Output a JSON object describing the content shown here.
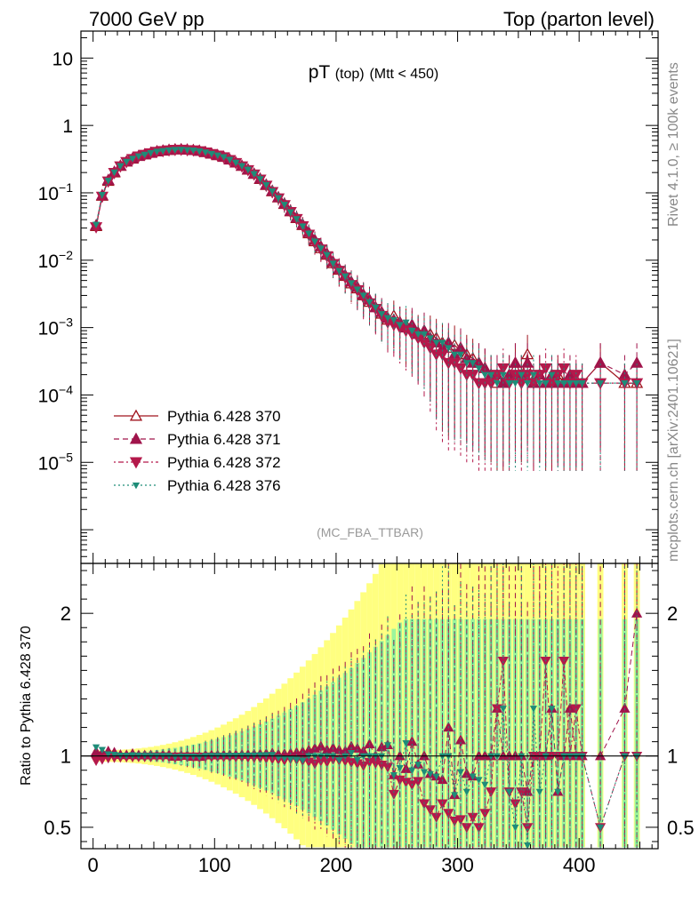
{
  "header": {
    "left": "7000 GeV pp",
    "right": "Top (parton level)",
    "side_rivet": "Rivet 4.1.0, ≥ 100k events",
    "side_mcplots": "mcplots.cern.ch [arXiv:2401.10621]"
  },
  "chart_data": {
    "type": "line",
    "title_main": "pT",
    "title_sub1": "(top)",
    "title_sub2": "(Mtt < 450)",
    "analysis_tag": "(MC_FBA_TTBAR)",
    "xlabel": "",
    "ylabel_ratio": "Ratio to Pythia 6.428 370",
    "xlim": [
      -10,
      465
    ],
    "ylim_main_log10": [
      -6.5,
      1.4
    ],
    "ylim_ratio": [
      0.35,
      2.35
    ],
    "x_ticks": [
      "0",
      "100",
      "200",
      "300",
      "400"
    ],
    "x_tick_values": [
      0,
      100,
      200,
      300,
      400
    ],
    "y_ticks_main": [
      {
        "base": "10",
        "exp": "",
        "v": 1
      },
      {
        "base": "1",
        "exp": "",
        "v": 0
      },
      {
        "base": "10",
        "exp": "−1",
        "v": -1
      },
      {
        "base": "10",
        "exp": "−2",
        "v": -2
      },
      {
        "base": "10",
        "exp": "−3",
        "v": -3
      },
      {
        "base": "10",
        "exp": "−4",
        "v": -4
      },
      {
        "base": "10",
        "exp": "−5",
        "v": -5
      }
    ],
    "y_ticks_ratio": [
      {
        "label": "2",
        "v": 2
      },
      {
        "label": "1",
        "v": 1
      },
      {
        "label": "0.5",
        "v": 0.5
      }
    ],
    "x": [
      2.5,
      7.5,
      12.5,
      17.5,
      22.5,
      27.5,
      32.5,
      37.5,
      42.5,
      47.5,
      52.5,
      57.5,
      62.5,
      67.5,
      72.5,
      77.5,
      82.5,
      87.5,
      92.5,
      97.5,
      102.5,
      107.5,
      112.5,
      117.5,
      122.5,
      127.5,
      132.5,
      137.5,
      142.5,
      147.5,
      152.5,
      157.5,
      162.5,
      167.5,
      172.5,
      177.5,
      182.5,
      187.5,
      192.5,
      197.5,
      202.5,
      207.5,
      212.5,
      217.5,
      222.5,
      227.5,
      232.5,
      237.5,
      242.5,
      247.5,
      252.5,
      257.5,
      262.5,
      267.5,
      272.5,
      277.5,
      282.5,
      287.5,
      292.5,
      297.5,
      302.5,
      307.5,
      312.5,
      317.5,
      322.5,
      327.5,
      332.5,
      337.5,
      342.5,
      347.5,
      352.5,
      357.5,
      362.5,
      367.5,
      372.5,
      377.5,
      382.5,
      387.5,
      392.5,
      397.5,
      402.5,
      417.5,
      437.5,
      447.5
    ],
    "series": [
      {
        "name": "Pythia 6.428 370",
        "color": "#a0141e",
        "dash": "",
        "marker": "triangle-up-open",
        "y": [
          0.032,
          0.09,
          0.15,
          0.2,
          0.25,
          0.29,
          0.32,
          0.35,
          0.37,
          0.39,
          0.41,
          0.42,
          0.43,
          0.44,
          0.44,
          0.435,
          0.43,
          0.42,
          0.4,
          0.38,
          0.36,
          0.34,
          0.31,
          0.28,
          0.25,
          0.22,
          0.19,
          0.16,
          0.13,
          0.105,
          0.085,
          0.068,
          0.053,
          0.042,
          0.033,
          0.025,
          0.019,
          0.015,
          0.012,
          0.009,
          0.0072,
          0.0058,
          0.0045,
          0.0038,
          0.003,
          0.0024,
          0.002,
          0.0016,
          0.0013,
          0.0015,
          0.0012,
          0.0011,
          0.001,
          0.00085,
          0.0009,
          0.0008,
          0.0007,
          0.0006,
          0.0005,
          0.00055,
          0.00045,
          0.0004,
          0.00035,
          0.0003,
          0.00025,
          0.0002,
          0.00015,
          0.00015,
          0.0002,
          0.0003,
          0.0002,
          0.0004,
          0.00015,
          0.0002,
          0.00015,
          0.00015,
          0.0002,
          0.00015,
          0.00015,
          0.00015,
          0.00015,
          0.0003,
          0.00015,
          0.00015
        ]
      },
      {
        "name": "Pythia 6.428 371",
        "color": "#a0144b",
        "dash": "6,4",
        "marker": "triangle-up",
        "y": [
          0.033,
          0.092,
          0.155,
          0.205,
          0.252,
          0.292,
          0.325,
          0.352,
          0.372,
          0.392,
          0.412,
          0.423,
          0.433,
          0.438,
          0.441,
          0.436,
          0.428,
          0.418,
          0.402,
          0.382,
          0.362,
          0.342,
          0.312,
          0.282,
          0.252,
          0.222,
          0.192,
          0.162,
          0.132,
          0.107,
          0.086,
          0.069,
          0.054,
          0.043,
          0.034,
          0.026,
          0.02,
          0.016,
          0.0125,
          0.0095,
          0.0075,
          0.006,
          0.0048,
          0.004,
          0.0031,
          0.0026,
          0.002,
          0.0017,
          0.0014,
          0.0013,
          0.0012,
          0.001,
          0.0011,
          0.0008,
          0.0009,
          0.0007,
          0.0006,
          0.0005,
          0.0006,
          0.0004,
          0.0005,
          0.00035,
          0.0003,
          0.0003,
          0.00025,
          0.0002,
          0.0002,
          0.00015,
          0.0002,
          0.0003,
          0.0002,
          0.0003,
          0.00015,
          0.0002,
          0.00015,
          0.0002,
          0.00015,
          0.00015,
          0.0002,
          0.00015,
          0.00015,
          0.0003,
          0.0002,
          0.0003
        ]
      },
      {
        "name": "Pythia 6.428 372",
        "color": "#b4194b",
        "dash": "2,3,6,3",
        "marker": "triangle-down",
        "y": [
          0.031,
          0.088,
          0.148,
          0.198,
          0.248,
          0.288,
          0.318,
          0.348,
          0.368,
          0.388,
          0.408,
          0.418,
          0.428,
          0.436,
          0.438,
          0.432,
          0.428,
          0.416,
          0.398,
          0.378,
          0.358,
          0.338,
          0.308,
          0.278,
          0.248,
          0.218,
          0.188,
          0.158,
          0.128,
          0.103,
          0.083,
          0.066,
          0.052,
          0.041,
          0.032,
          0.024,
          0.018,
          0.0145,
          0.0115,
          0.0088,
          0.007,
          0.0056,
          0.0043,
          0.0036,
          0.0028,
          0.0023,
          0.0019,
          0.0015,
          0.0012,
          0.0011,
          0.001,
          0.0009,
          0.0008,
          0.0007,
          0.0006,
          0.0005,
          0.0004,
          0.0004,
          0.0003,
          0.0003,
          0.00025,
          0.0002,
          0.0002,
          0.00015,
          0.00015,
          0.00015,
          0.0002,
          0.00025,
          0.00015,
          0.0002,
          0.00015,
          0.0002,
          0.00015,
          0.0002,
          0.00025,
          0.00015,
          0.0002,
          0.00025,
          0.00015,
          0.0002,
          0.00015,
          0.00015,
          0.00015,
          0.00015
        ]
      },
      {
        "name": "Pythia 6.428 376",
        "color": "#1e8c78",
        "dash": "2,3",
        "marker": "triangle-down-small",
        "y": [
          0.034,
          0.094,
          0.152,
          0.202,
          0.251,
          0.291,
          0.322,
          0.351,
          0.371,
          0.391,
          0.411,
          0.421,
          0.431,
          0.437,
          0.439,
          0.434,
          0.429,
          0.417,
          0.401,
          0.381,
          0.361,
          0.341,
          0.311,
          0.281,
          0.251,
          0.221,
          0.191,
          0.161,
          0.131,
          0.106,
          0.084,
          0.067,
          0.052,
          0.041,
          0.032,
          0.025,
          0.019,
          0.015,
          0.012,
          0.009,
          0.007,
          0.0058,
          0.0046,
          0.0037,
          0.003,
          0.0024,
          0.002,
          0.0016,
          0.0014,
          0.0013,
          0.0011,
          0.0012,
          0.0009,
          0.0008,
          0.0008,
          0.0007,
          0.0006,
          0.0006,
          0.0005,
          0.0004,
          0.0004,
          0.0003,
          0.0003,
          0.00025,
          0.0002,
          0.0002,
          0.00015,
          0.0002,
          0.00015,
          0.00015,
          0.0002,
          0.00015,
          0.0002,
          0.00015,
          0.00015,
          0.0002,
          0.00015,
          0.00015,
          0.00015,
          0.00015,
          0.00015,
          0.00015,
          0.00015,
          0.00015
        ]
      }
    ]
  }
}
